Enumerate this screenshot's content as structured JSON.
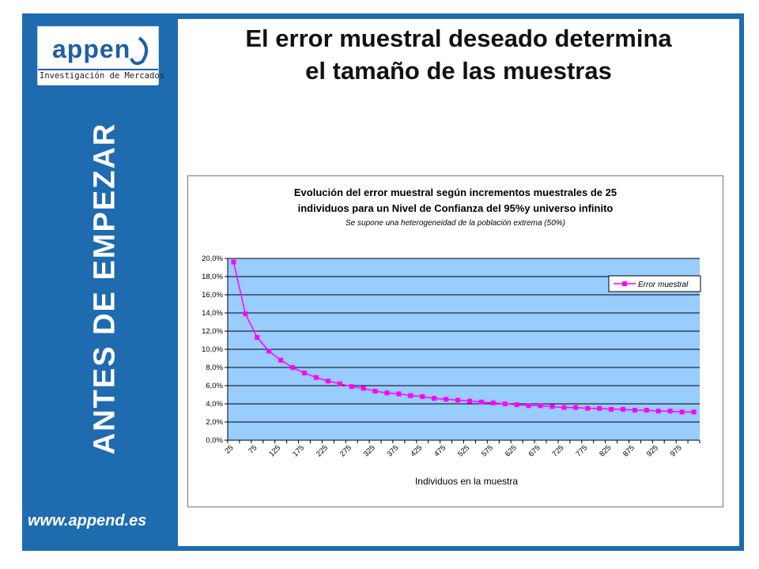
{
  "sidebar": {
    "logo_text": "appen",
    "logo_subtitle": "Investigación de Mercados",
    "vertical_label": "ANTES DE EMPEZAR",
    "website": "www.append.es"
  },
  "slide": {
    "title": "El error muestral deseado determina el tamaño de las muestras"
  },
  "colors": {
    "frame": "#1f6bb0",
    "plot_bg": "#99ccff",
    "series": "#ff00ff"
  },
  "chart_data": {
    "type": "line",
    "title": "Evolución del error muestral según incrementos muestrales de 25",
    "title_line2": "individuos para un Nivel de Confianza del 95%y universo infinito",
    "subtitle": "Se supone una heterogeneidad de la población extrema (50%)",
    "xlabel": "Individuos en la muestra",
    "ylabel": "",
    "ylim": [
      0,
      20
    ],
    "yticks": [
      "0,0%",
      "2,0%",
      "4,0%",
      "6,0%",
      "8,0%",
      "10,0%",
      "12,0%",
      "14,0%",
      "16,0%",
      "18,0%",
      "20,0%"
    ],
    "x": [
      25,
      50,
      75,
      100,
      125,
      150,
      175,
      200,
      225,
      250,
      275,
      300,
      325,
      350,
      375,
      400,
      425,
      450,
      475,
      500,
      525,
      550,
      575,
      600,
      625,
      650,
      675,
      700,
      725,
      750,
      775,
      800,
      825,
      850,
      875,
      900,
      925,
      950,
      975,
      1000
    ],
    "xtick_labels": [
      "25",
      "75",
      "125",
      "175",
      "225",
      "275",
      "325",
      "375",
      "425",
      "475",
      "525",
      "575",
      "625",
      "675",
      "725",
      "775",
      "825",
      "875",
      "925",
      "975"
    ],
    "series": [
      {
        "name": "Error muestral",
        "values": [
          19.6,
          13.9,
          11.3,
          9.8,
          8.8,
          8.0,
          7.4,
          6.9,
          6.5,
          6.2,
          5.9,
          5.7,
          5.4,
          5.2,
          5.1,
          4.9,
          4.8,
          4.6,
          4.5,
          4.4,
          4.3,
          4.2,
          4.1,
          4.0,
          3.9,
          3.8,
          3.8,
          3.7,
          3.6,
          3.6,
          3.5,
          3.5,
          3.4,
          3.4,
          3.3,
          3.3,
          3.2,
          3.2,
          3.1,
          3.1
        ]
      }
    ],
    "legend": "top-right",
    "grid": true
  }
}
